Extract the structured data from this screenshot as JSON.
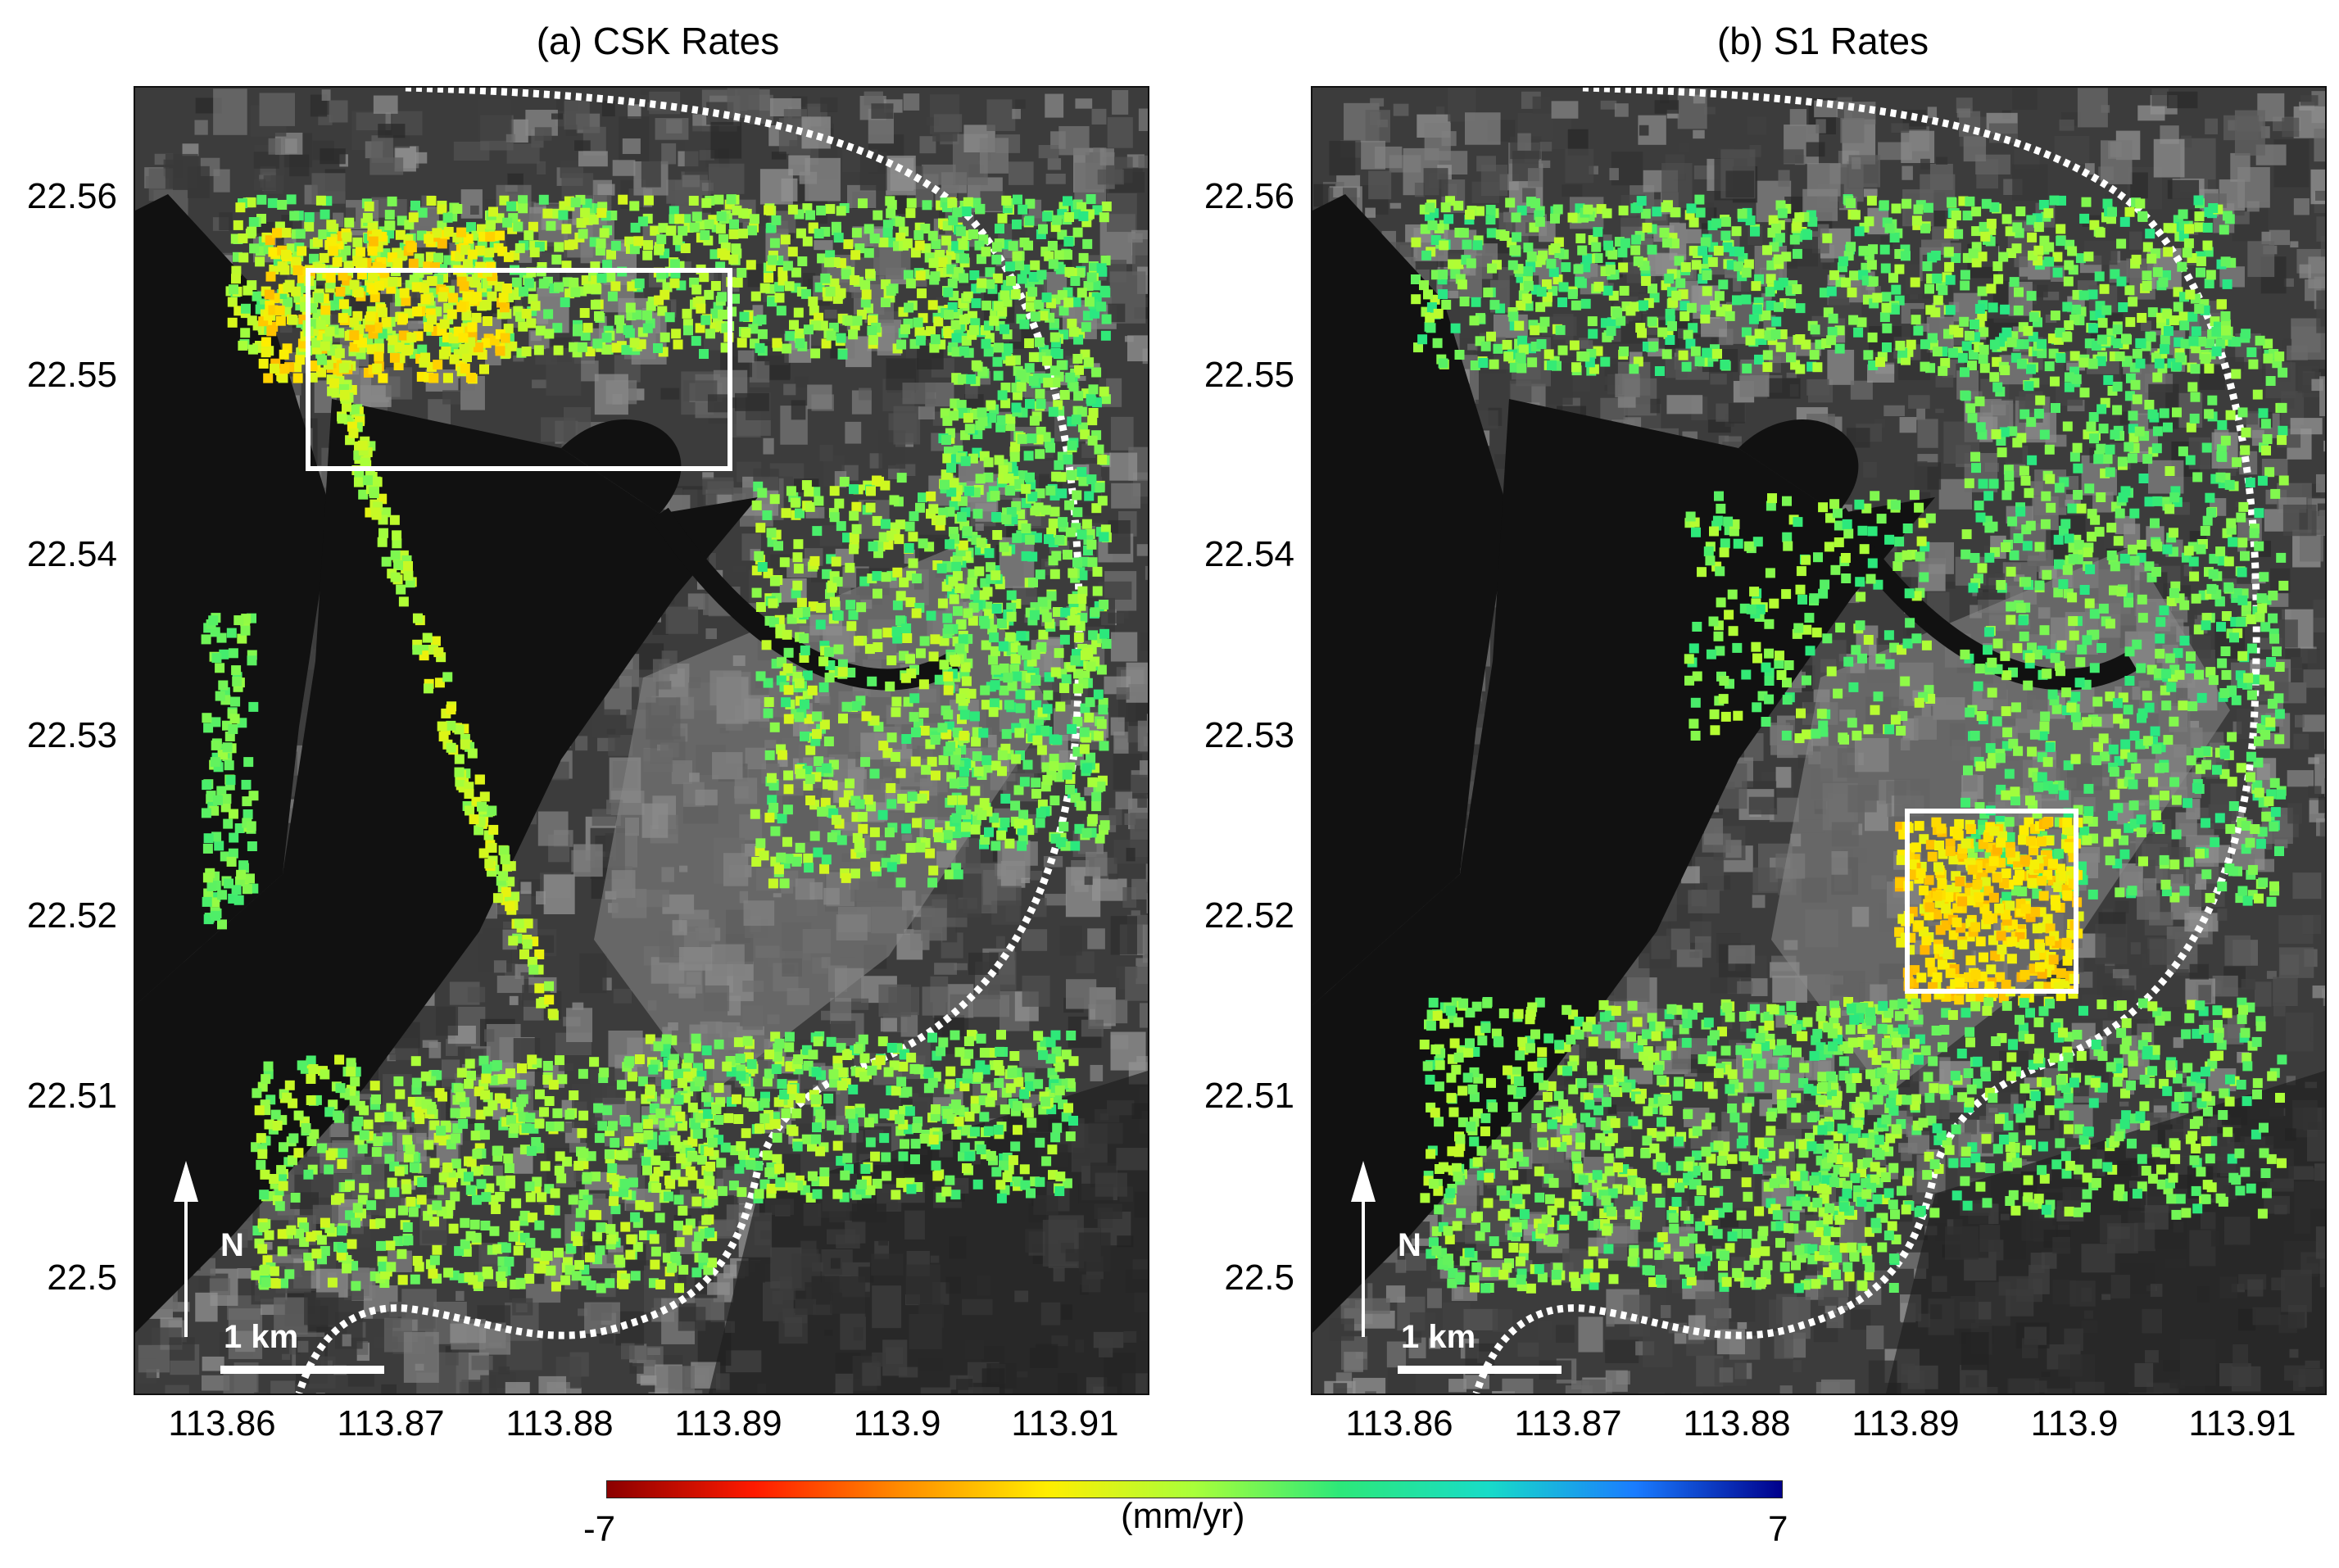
{
  "panels": [
    {
      "id": "csk",
      "title": "(a) CSK Rates",
      "y_ticks": [
        "22.56",
        "22.55",
        "22.54",
        "22.53",
        "22.52",
        "22.51",
        "22.5"
      ],
      "x_ticks": [
        "113.86",
        "113.87",
        "113.88",
        "113.89",
        "113.9",
        "113.91"
      ],
      "north_label": "N",
      "scale_label": "1 km",
      "highlight_box": {
        "lon_min": 113.865,
        "lon_max": 113.89,
        "lat_min": 22.545,
        "lat_max": 22.556
      }
    },
    {
      "id": "s1",
      "title": "(b) S1 Rates",
      "y_ticks": [
        "22.56",
        "22.55",
        "22.54",
        "22.53",
        "22.52",
        "22.51",
        "22.5"
      ],
      "x_ticks": [
        "113.86",
        "113.87",
        "113.88",
        "113.89",
        "113.9",
        "113.91"
      ],
      "north_label": "N",
      "scale_label": "1 km",
      "highlight_box": {
        "lon_min": 113.89,
        "lon_max": 113.9,
        "lat_min": 22.516,
        "lat_max": 22.526
      }
    }
  ],
  "colorbar": {
    "min_label": "-7",
    "max_label": "7",
    "unit_label": "(mm/yr)",
    "min": -7,
    "max": 7,
    "colors": [
      "#8b0000",
      "#ff1a00",
      "#ff8c00",
      "#ffee00",
      "#a8ff3a",
      "#2ce87a",
      "#18dcc8",
      "#1a7cff",
      "#00008b"
    ]
  },
  "colors": {
    "background_dark": "#2a2a2a",
    "water": "#111111",
    "route_line": "#ffffff",
    "highlight_box": "#ffffff"
  }
}
